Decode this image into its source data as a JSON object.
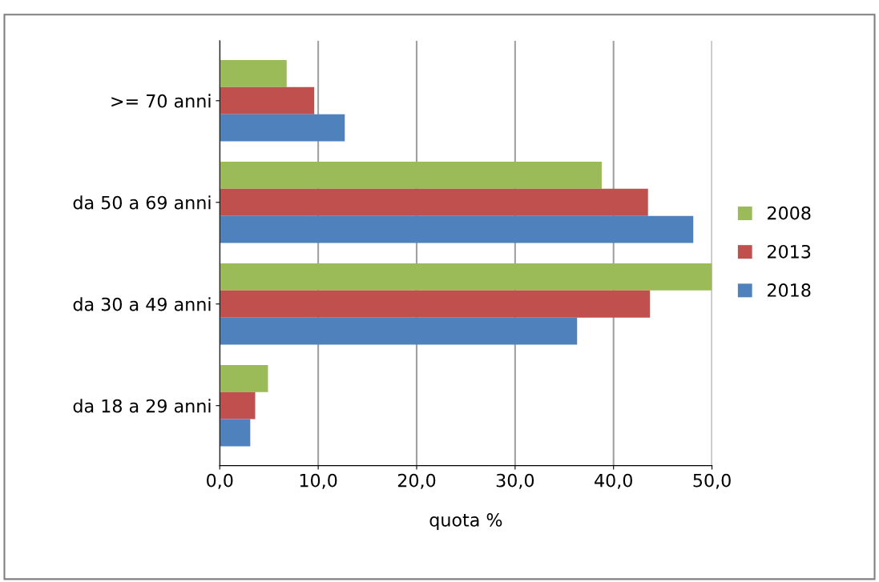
{
  "chart_data": {
    "type": "bar",
    "orientation": "horizontal",
    "xlabel": "quota %",
    "categories": [
      ">= 70 anni",
      "da 50 a 69 anni",
      "da 30 a 49 anni",
      "da 18 a 29 anni"
    ],
    "series": [
      {
        "name": "2008",
        "color": "#9bbb59",
        "values": [
          6.8,
          38.8,
          50.0,
          4.9
        ]
      },
      {
        "name": "2013",
        "color": "#c0504d",
        "values": [
          9.6,
          43.5,
          43.7,
          3.6
        ]
      },
      {
        "name": "2018",
        "color": "#4f81bd",
        "values": [
          12.7,
          48.1,
          36.3,
          3.1
        ]
      }
    ],
    "xlim": [
      0,
      50
    ],
    "xticks": [
      {
        "value": 0,
        "label": "0,0"
      },
      {
        "value": 10,
        "label": "10,0"
      },
      {
        "value": 20,
        "label": "20,0"
      },
      {
        "value": 30,
        "label": "30,0"
      },
      {
        "value": 40,
        "label": "40,0"
      },
      {
        "value": 50,
        "label": "50,0"
      }
    ],
    "grid": "x",
    "legend": "right"
  }
}
